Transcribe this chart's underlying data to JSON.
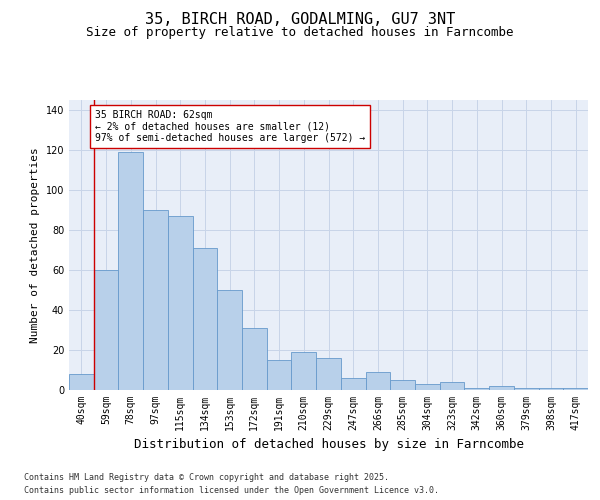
{
  "title": "35, BIRCH ROAD, GODALMING, GU7 3NT",
  "subtitle": "Size of property relative to detached houses in Farncombe",
  "xlabel": "Distribution of detached houses by size in Farncombe",
  "ylabel": "Number of detached properties",
  "categories": [
    "40sqm",
    "59sqm",
    "78sqm",
    "97sqm",
    "115sqm",
    "134sqm",
    "153sqm",
    "172sqm",
    "191sqm",
    "210sqm",
    "229sqm",
    "247sqm",
    "266sqm",
    "285sqm",
    "304sqm",
    "323sqm",
    "342sqm",
    "360sqm",
    "379sqm",
    "398sqm",
    "417sqm"
  ],
  "bar_heights": [
    8,
    60,
    119,
    90,
    87,
    71,
    50,
    31,
    15,
    19,
    16,
    6,
    9,
    5,
    3,
    4,
    1,
    2,
    1,
    1,
    1
  ],
  "bar_color": "#b8d0ea",
  "bar_edge_color": "#6699cc",
  "red_line_color": "#cc0000",
  "annotation_box_text": "35 BIRCH ROAD: 62sqm\n← 2% of detached houses are smaller (12)\n97% of semi-detached houses are larger (572) →",
  "ylim": [
    0,
    145
  ],
  "yticks": [
    0,
    20,
    40,
    60,
    80,
    100,
    120,
    140
  ],
  "plot_bg_color": "#e8eef8",
  "grid_color": "#c8d4e8",
  "footer_line1": "Contains HM Land Registry data © Crown copyright and database right 2025.",
  "footer_line2": "Contains public sector information licensed under the Open Government Licence v3.0.",
  "title_fontsize": 11,
  "subtitle_fontsize": 9,
  "axis_label_fontsize": 8,
  "tick_fontsize": 7,
  "annotation_fontsize": 7,
  "footer_fontsize": 6
}
